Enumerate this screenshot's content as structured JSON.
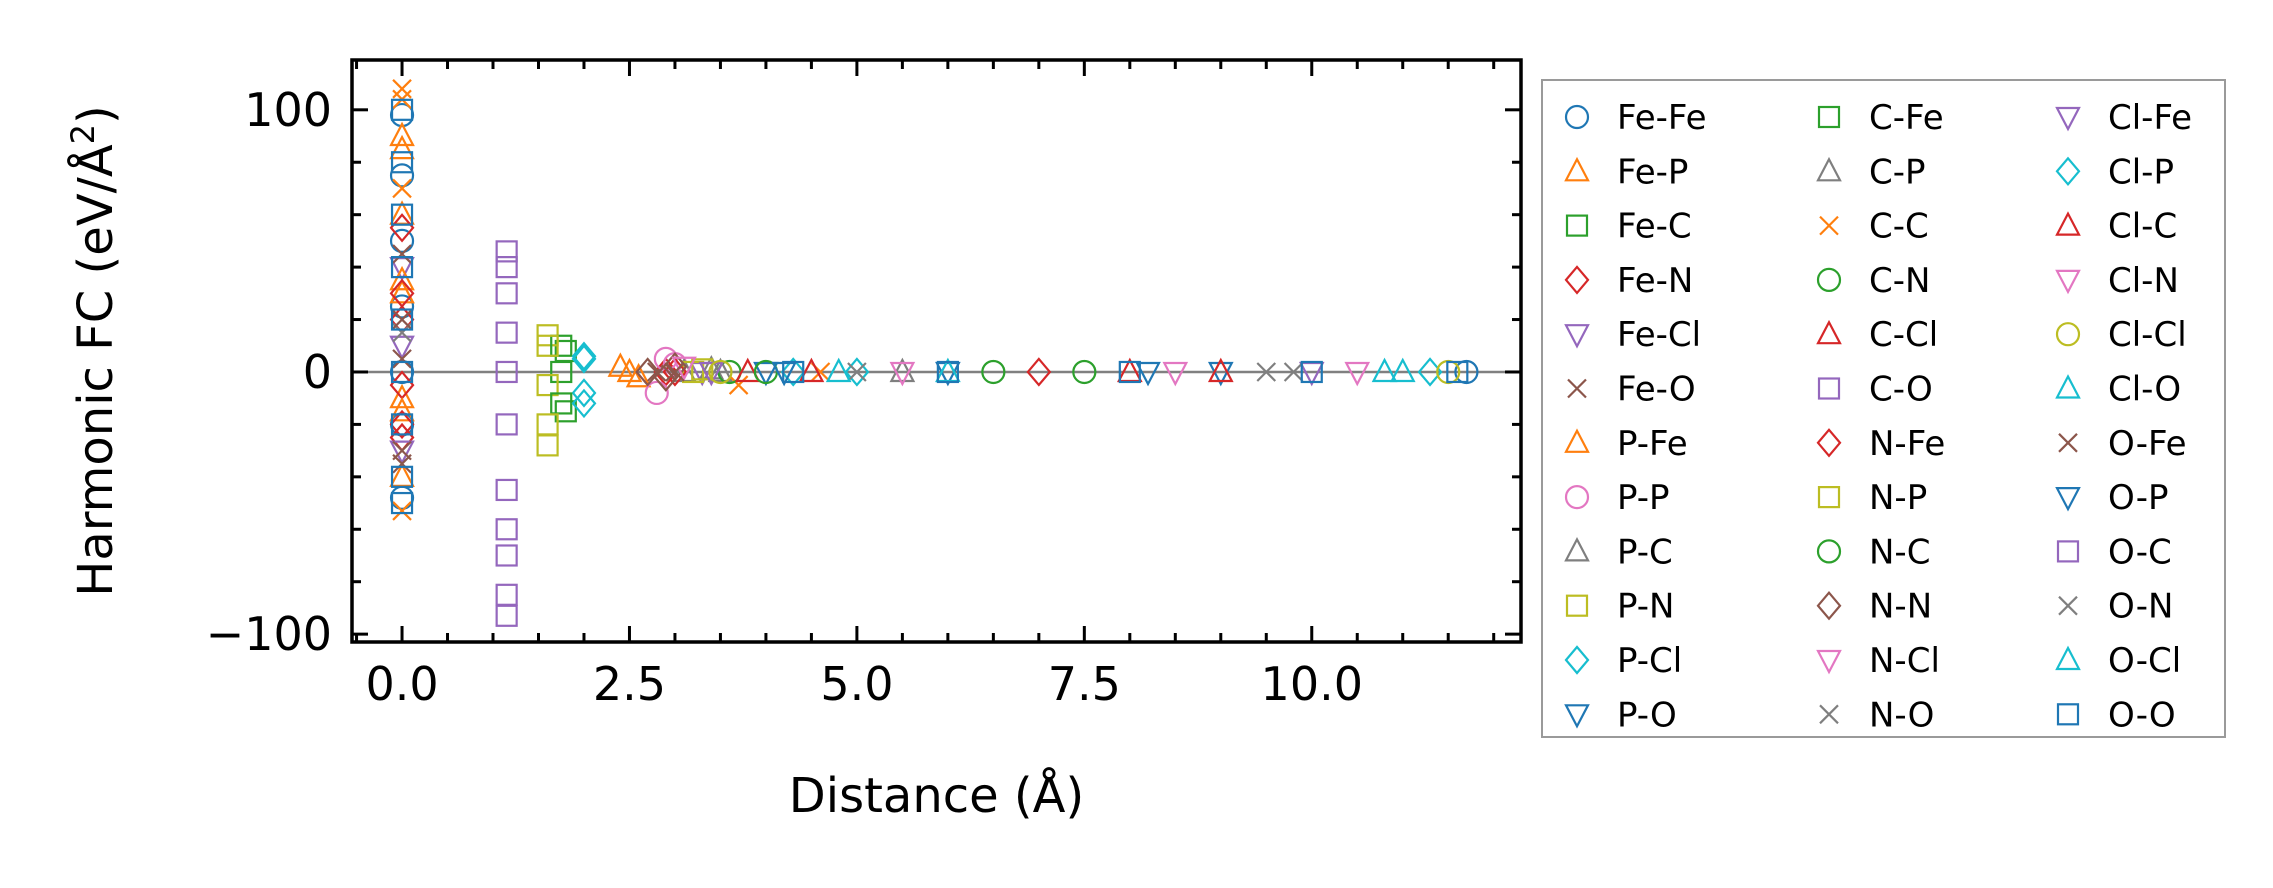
{
  "chart_data": {
    "type": "scatter",
    "title": "",
    "xlabel": "Distance (Å)",
    "ylabel": "Harmonic FC (eV/Å²)",
    "ylabel_main": "Harmonic FC (eV/Å",
    "ylabel_sup": "2",
    "ylabel_end": ")",
    "xlim": [
      -0.55,
      12.3
    ],
    "ylim": [
      -103,
      119
    ],
    "xticks": [
      0.0,
      2.5,
      5.0,
      7.5,
      10.0
    ],
    "xtick_labels": [
      "0.0",
      "2.5",
      "5.0",
      "7.5",
      "10.0"
    ],
    "yticks": [
      -100,
      0,
      100
    ],
    "ytick_labels": [
      "−100",
      "0",
      "100"
    ],
    "reference_line_y": 0,
    "grid": false,
    "legend": {
      "placement": "outside-right",
      "columns": 3
    },
    "series": [
      {
        "name": "Fe-Fe",
        "marker": "o",
        "color": "#1f77b4",
        "points": [
          [
            0.0,
            98
          ],
          [
            0.0,
            75
          ],
          [
            0.0,
            50
          ],
          [
            0.0,
            25
          ],
          [
            0.0,
            0
          ],
          [
            0.0,
            -20
          ],
          [
            0.0,
            -48
          ],
          [
            11.7,
            0
          ]
        ]
      },
      {
        "name": "Fe-P",
        "marker": "^",
        "color": "#ff7f0e",
        "points": [
          [
            0.0,
            90
          ],
          [
            0.0,
            60
          ],
          [
            0.0,
            30
          ],
          [
            0.0,
            -10
          ],
          [
            0.0,
            -40
          ],
          [
            2.4,
            2
          ],
          [
            2.6,
            -2
          ]
        ]
      },
      {
        "name": "Fe-C",
        "marker": "s",
        "color": "#2ca02c",
        "points": [
          [
            1.8,
            8
          ],
          [
            1.8,
            -15
          ],
          [
            1.75,
            0
          ]
        ]
      },
      {
        "name": "Fe-N",
        "marker": "D",
        "color": "#d62728",
        "points": [
          [
            0.0,
            55
          ],
          [
            0.0,
            20
          ],
          [
            0.0,
            -5
          ],
          [
            0.0,
            -25
          ],
          [
            2.9,
            0
          ]
        ]
      },
      {
        "name": "Fe-Cl",
        "marker": "v",
        "color": "#9467bd",
        "points": [
          [
            0.0,
            40
          ],
          [
            0.0,
            10
          ],
          [
            0.0,
            -30
          ],
          [
            3.3,
            0
          ]
        ]
      },
      {
        "name": "Fe-O",
        "marker": "x",
        "color": "#8c564b",
        "points": [
          [
            0.0,
            45
          ],
          [
            0.0,
            5
          ],
          [
            0.0,
            -35
          ],
          [
            2.8,
            0
          ]
        ]
      },
      {
        "name": "P-Fe",
        "marker": "^",
        "color": "#ff7f0e",
        "points": [
          [
            0.0,
            85
          ],
          [
            0.0,
            35
          ],
          [
            0.0,
            -15
          ],
          [
            2.5,
            0
          ]
        ]
      },
      {
        "name": "P-P",
        "marker": "o",
        "color": "#e377c2",
        "points": [
          [
            2.8,
            -8
          ],
          [
            3.0,
            3
          ],
          [
            2.9,
            5
          ]
        ]
      },
      {
        "name": "P-C",
        "marker": "^",
        "color": "#7f7f7f",
        "points": [
          [
            3.1,
            0
          ],
          [
            3.4,
            1
          ]
        ]
      },
      {
        "name": "P-N",
        "marker": "s",
        "color": "#bcbd22",
        "points": [
          [
            1.6,
            14
          ],
          [
            1.6,
            -5
          ],
          [
            1.6,
            -28
          ],
          [
            3.2,
            0
          ]
        ]
      },
      {
        "name": "P-Cl",
        "marker": "D",
        "color": "#17becf",
        "points": [
          [
            2.0,
            5
          ],
          [
            2.0,
            -8
          ],
          [
            4.3,
            0
          ],
          [
            11.3,
            0
          ]
        ]
      },
      {
        "name": "P-O",
        "marker": "v",
        "color": "#1f77b4",
        "points": [
          [
            4.0,
            0
          ],
          [
            6.0,
            0
          ],
          [
            9.0,
            0
          ]
        ]
      },
      {
        "name": "C-Fe",
        "marker": "s",
        "color": "#2ca02c",
        "points": [
          [
            1.75,
            10
          ],
          [
            1.75,
            -12
          ]
        ]
      },
      {
        "name": "C-P",
        "marker": "^",
        "color": "#7f7f7f",
        "points": [
          [
            3.5,
            0
          ],
          [
            5.5,
            0
          ]
        ]
      },
      {
        "name": "C-C",
        "marker": "x",
        "color": "#ff7f0e",
        "points": [
          [
            0.0,
            108
          ],
          [
            0.0,
            104
          ],
          [
            0.0,
            70
          ],
          [
            0.0,
            -53
          ],
          [
            3.7,
            -5
          ],
          [
            4.6,
            0
          ]
        ]
      },
      {
        "name": "C-N",
        "marker": "o",
        "color": "#2ca02c",
        "points": [
          [
            3.6,
            0
          ],
          [
            6.5,
            0
          ]
        ]
      },
      {
        "name": "C-Cl",
        "marker": "^",
        "color": "#d62728",
        "points": [
          [
            3.8,
            0
          ],
          [
            8.0,
            0
          ]
        ]
      },
      {
        "name": "C-O",
        "marker": "s",
        "color": "#9467bd",
        "points": [
          [
            1.15,
            46
          ],
          [
            1.15,
            30
          ],
          [
            1.15,
            15
          ],
          [
            1.15,
            0
          ],
          [
            1.15,
            -20
          ],
          [
            1.15,
            -45
          ],
          [
            1.15,
            -70
          ],
          [
            1.15,
            -93
          ]
        ]
      },
      {
        "name": "N-Fe",
        "marker": "D",
        "color": "#d62728",
        "points": [
          [
            0.0,
            30
          ],
          [
            0.0,
            -20
          ],
          [
            3.0,
            0
          ],
          [
            7.0,
            0
          ]
        ]
      },
      {
        "name": "N-P",
        "marker": "s",
        "color": "#bcbd22",
        "points": [
          [
            1.6,
            10
          ],
          [
            1.6,
            -20
          ],
          [
            3.3,
            1
          ]
        ]
      },
      {
        "name": "N-C",
        "marker": "o",
        "color": "#2ca02c",
        "points": [
          [
            4.0,
            0
          ],
          [
            7.5,
            0
          ]
        ]
      },
      {
        "name": "N-N",
        "marker": "D",
        "color": "#8c564b",
        "points": [
          [
            2.7,
            0
          ],
          [
            2.9,
            -2
          ],
          [
            3.0,
            2
          ]
        ]
      },
      {
        "name": "N-Cl",
        "marker": "v",
        "color": "#e377c2",
        "points": [
          [
            3.1,
            2
          ],
          [
            8.5,
            0
          ]
        ]
      },
      {
        "name": "N-O",
        "marker": "x",
        "color": "#7f7f7f",
        "points": [
          [
            0.0,
            15
          ],
          [
            9.5,
            0
          ]
        ]
      },
      {
        "name": "Cl-Fe",
        "marker": "v",
        "color": "#9467bd",
        "points": [
          [
            3.4,
            0
          ],
          [
            10.0,
            0
          ]
        ]
      },
      {
        "name": "Cl-P",
        "marker": "D",
        "color": "#17becf",
        "points": [
          [
            2.0,
            6
          ],
          [
            2.0,
            -12
          ],
          [
            5.0,
            0
          ]
        ]
      },
      {
        "name": "Cl-C",
        "marker": "^",
        "color": "#d62728",
        "points": [
          [
            4.5,
            0
          ],
          [
            9.0,
            0
          ]
        ]
      },
      {
        "name": "Cl-N",
        "marker": "v",
        "color": "#e377c2",
        "points": [
          [
            5.5,
            0
          ],
          [
            10.5,
            0
          ]
        ]
      },
      {
        "name": "Cl-Cl",
        "marker": "o",
        "color": "#bcbd22",
        "points": [
          [
            3.5,
            0
          ],
          [
            11.5,
            0
          ]
        ]
      },
      {
        "name": "Cl-O",
        "marker": "^",
        "color": "#17becf",
        "points": [
          [
            6.0,
            0
          ],
          [
            11.0,
            0
          ]
        ]
      },
      {
        "name": "O-Fe",
        "marker": "x",
        "color": "#8c564b",
        "points": [
          [
            0.0,
            20
          ],
          [
            0.0,
            -30
          ],
          [
            3.0,
            0
          ]
        ]
      },
      {
        "name": "O-P",
        "marker": "v",
        "color": "#1f77b4",
        "points": [
          [
            4.2,
            0
          ],
          [
            8.2,
            0
          ]
        ]
      },
      {
        "name": "O-C",
        "marker": "s",
        "color": "#9467bd",
        "points": [
          [
            1.15,
            40
          ],
          [
            1.15,
            -60
          ],
          [
            1.15,
            -85
          ]
        ]
      },
      {
        "name": "O-N",
        "marker": "x",
        "color": "#7f7f7f",
        "points": [
          [
            5.0,
            0
          ],
          [
            9.8,
            0
          ]
        ]
      },
      {
        "name": "O-Cl",
        "marker": "^",
        "color": "#17becf",
        "points": [
          [
            4.8,
            0
          ],
          [
            10.8,
            0
          ]
        ]
      },
      {
        "name": "O-O",
        "marker": "s",
        "color": "#1f77b4",
        "points": [
          [
            0.0,
            100
          ],
          [
            0.0,
            80
          ],
          [
            0.0,
            60
          ],
          [
            0.0,
            40
          ],
          [
            0.0,
            20
          ],
          [
            0.0,
            0
          ],
          [
            0.0,
            -20
          ],
          [
            0.0,
            -40
          ],
          [
            0.0,
            -50
          ],
          [
            4.3,
            0
          ],
          [
            6.0,
            0
          ],
          [
            8.0,
            0
          ],
          [
            10.0,
            0
          ],
          [
            11.6,
            0
          ]
        ]
      }
    ]
  }
}
